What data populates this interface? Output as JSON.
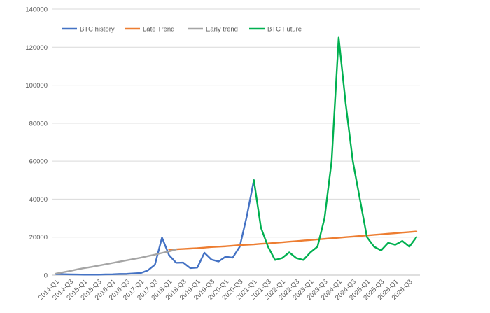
{
  "chart_data": {
    "type": "line",
    "title": "",
    "xlabel": "",
    "ylabel": "",
    "ylim": [
      0,
      140000
    ],
    "yticks": [
      "0",
      "20000",
      "40000",
      "60000",
      "80000",
      "100000",
      "120000",
      "140000"
    ],
    "grid": true,
    "legend": "top-left",
    "categories": [
      "2014-Q1",
      "2014-Q2",
      "2014-Q3",
      "2014-Q4",
      "2015-Q1",
      "2015-Q2",
      "2015-Q3",
      "2015-Q4",
      "2016-Q1",
      "2016-Q2",
      "2016-Q3",
      "2016-Q4",
      "2017-Q1",
      "2017-Q2",
      "2017-Q3",
      "2017-Q4",
      "2018-Q1",
      "2018-Q2",
      "2018-Q3",
      "2018-Q4",
      "2019-Q1",
      "2019-Q2",
      "2019-Q3",
      "2019-Q4",
      "2020-Q1",
      "2020-Q2",
      "2020-Q3",
      "2020-Q4",
      "2021-Q1",
      "2021-Q2",
      "2021-Q3",
      "2021-Q4",
      "2022-Q1",
      "2022-Q2",
      "2022-Q3",
      "2022-Q4",
      "2023-Q1",
      "2023-Q2",
      "2023-Q3",
      "2023-Q4",
      "2024-Q1",
      "2024-Q2",
      "2024-Q3",
      "2024-Q4",
      "2025-Q1",
      "2025-Q2",
      "2025-Q3",
      "2025-Q4",
      "2026-Q1",
      "2026-Q2",
      "2026-Q3",
      "2026-Q4"
    ],
    "series": [
      {
        "name": "BTC history",
        "color": "#4472c4",
        "values": [
          600,
          500,
          400,
          350,
          250,
          250,
          250,
          400,
          450,
          600,
          650,
          900,
          1100,
          2500,
          5500,
          19800,
          10500,
          6500,
          6600,
          3700,
          4000,
          11800,
          8200,
          7200,
          9700,
          9200,
          15000,
          31000,
          50000,
          null,
          null,
          null,
          null,
          null,
          null,
          null,
          null,
          null,
          null,
          null,
          null,
          null,
          null,
          null,
          null,
          null,
          null,
          null,
          null,
          null,
          null,
          null
        ]
      },
      {
        "name": "Late Trend",
        "color": "#ed7d31",
        "values": [
          null,
          null,
          null,
          null,
          null,
          null,
          null,
          null,
          null,
          null,
          null,
          null,
          null,
          null,
          null,
          null,
          13500,
          13600,
          13800,
          14000,
          14200,
          14500,
          14800,
          15000,
          15200,
          15500,
          15800,
          16000,
          16200,
          16500,
          16700,
          17000,
          17300,
          17600,
          17900,
          18200,
          18500,
          18800,
          19100,
          19400,
          19700,
          20000,
          20300,
          20600,
          20900,
          21200,
          21500,
          21800,
          22100,
          22400,
          22700,
          23000
        ]
      },
      {
        "name": "Early trend",
        "color": "#a5a5a5",
        "values": [
          800,
          1500,
          2200,
          3000,
          3700,
          4300,
          5000,
          5700,
          6400,
          7100,
          7800,
          8500,
          9200,
          10000,
          10800,
          11700,
          12500,
          13500,
          null,
          null,
          null,
          null,
          null,
          null,
          null,
          null,
          null,
          null,
          null,
          null,
          null,
          null,
          null,
          null,
          null,
          null,
          null,
          null,
          null,
          null,
          null,
          null,
          null,
          null,
          null,
          null,
          null,
          null,
          null,
          null,
          null,
          null
        ]
      },
      {
        "name": "BTC Future",
        "color": "#00b050",
        "values": [
          null,
          null,
          null,
          null,
          null,
          null,
          null,
          null,
          null,
          null,
          null,
          null,
          null,
          null,
          null,
          null,
          null,
          null,
          null,
          null,
          null,
          null,
          null,
          null,
          null,
          null,
          null,
          null,
          50000,
          25000,
          15000,
          8000,
          9000,
          12000,
          9000,
          8000,
          12000,
          15000,
          30000,
          60000,
          125000,
          90000,
          60000,
          40000,
          20000,
          15000,
          13000,
          17000,
          16000,
          18000,
          15000,
          20000
        ]
      }
    ]
  }
}
